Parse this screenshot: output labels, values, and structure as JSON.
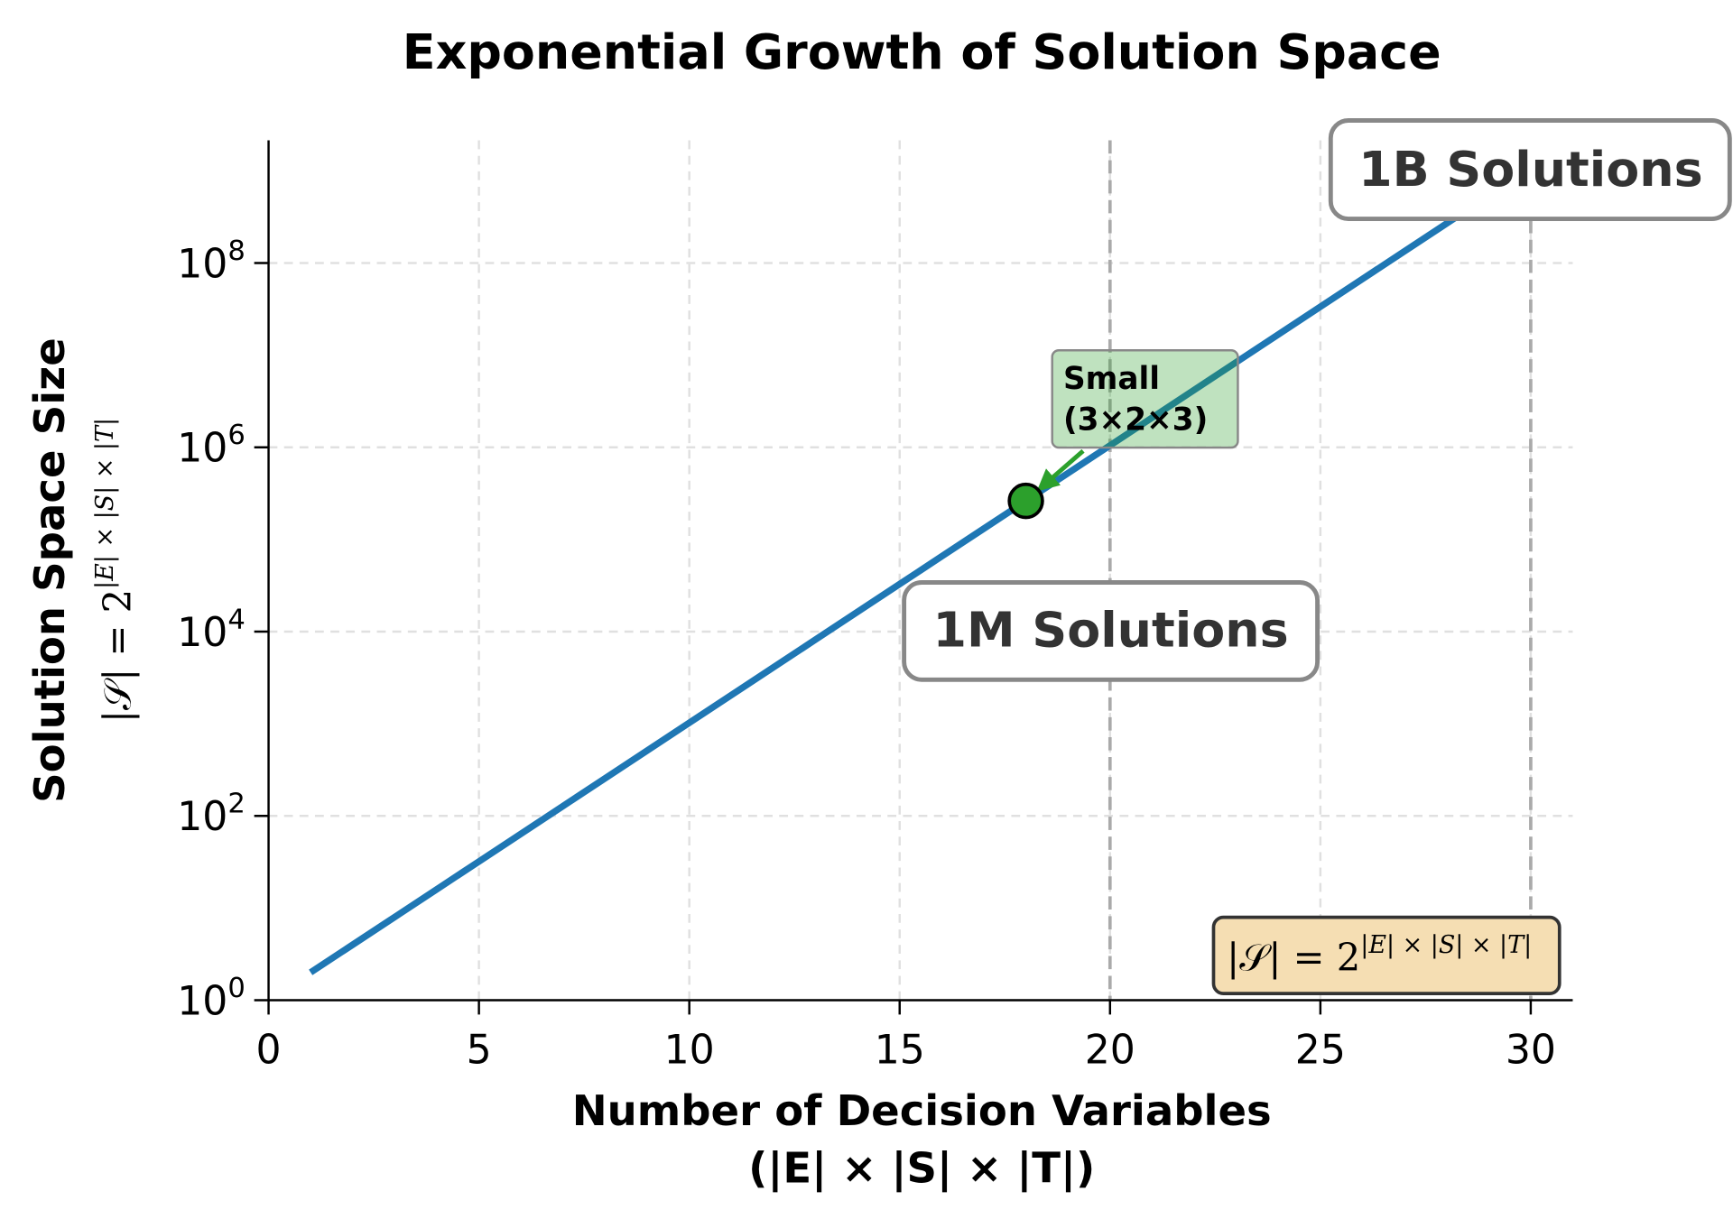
{
  "chart_data": {
    "type": "line",
    "title": "Exponential Growth of Solution Space",
    "xlabel": [
      "Number of Decision Variables",
      "(|E| × |S| × |T|)"
    ],
    "ylabel": "Solution Space Size",
    "ylabel_formula": {
      "base": "|𝒮| = 2",
      "exponent": "|E| × |S| × |T|"
    },
    "xlim": [
      0,
      31
    ],
    "ylim_log10": [
      0,
      9.35
    ],
    "yscale": "log",
    "grid": true,
    "x_ticks": [
      "0",
      "5",
      "10",
      "15",
      "20",
      "25",
      "30"
    ],
    "x_tick_values": [
      0,
      5,
      10,
      15,
      20,
      25,
      30
    ],
    "y_ticks": [
      {
        "base": "10",
        "exp": "0"
      },
      {
        "base": "10",
        "exp": "2"
      },
      {
        "base": "10",
        "exp": "4"
      },
      {
        "base": "10",
        "exp": "6"
      },
      {
        "base": "10",
        "exp": "8"
      }
    ],
    "y_tick_values": [
      1,
      100,
      10000,
      1000000,
      100000000
    ],
    "series": [
      {
        "color": "#1f77b4",
        "x": [
          1,
          2,
          3,
          4,
          5,
          6,
          7,
          8,
          9,
          10,
          11,
          12,
          13,
          14,
          15,
          16,
          17,
          18,
          19,
          20,
          21,
          22,
          23,
          24,
          25,
          26,
          27,
          28,
          29,
          30
        ],
        "y": [
          2,
          4,
          8,
          16,
          32,
          64,
          128,
          256,
          512,
          1024,
          2048,
          4096,
          8192,
          16384,
          32768,
          65536,
          131072,
          262144,
          524288,
          1048576,
          2097152,
          4194304,
          8388608,
          16777216,
          33554432,
          67108864,
          134217728,
          268435456,
          536870912,
          1073741824
        ]
      }
    ],
    "reference_lines": [
      {
        "x": 20,
        "color": "#aaaaaa"
      },
      {
        "x": 30,
        "color": "#aaaaaa"
      }
    ],
    "highlight_point": {
      "x": 18,
      "y": 262144,
      "color": "#2ca02c",
      "label_line1": "Small",
      "label_line2": "(3×2×3)"
    },
    "annotations": [
      {
        "text": "1M Solutions",
        "x": 20,
        "y": 10000
      },
      {
        "text": "1B Solutions",
        "x": 30,
        "y": 1000000000
      }
    ],
    "formula_box": {
      "base": "|𝒮| = 2",
      "exponent": "|E| × |S| × |T|",
      "fill": "#f5deb3"
    }
  }
}
